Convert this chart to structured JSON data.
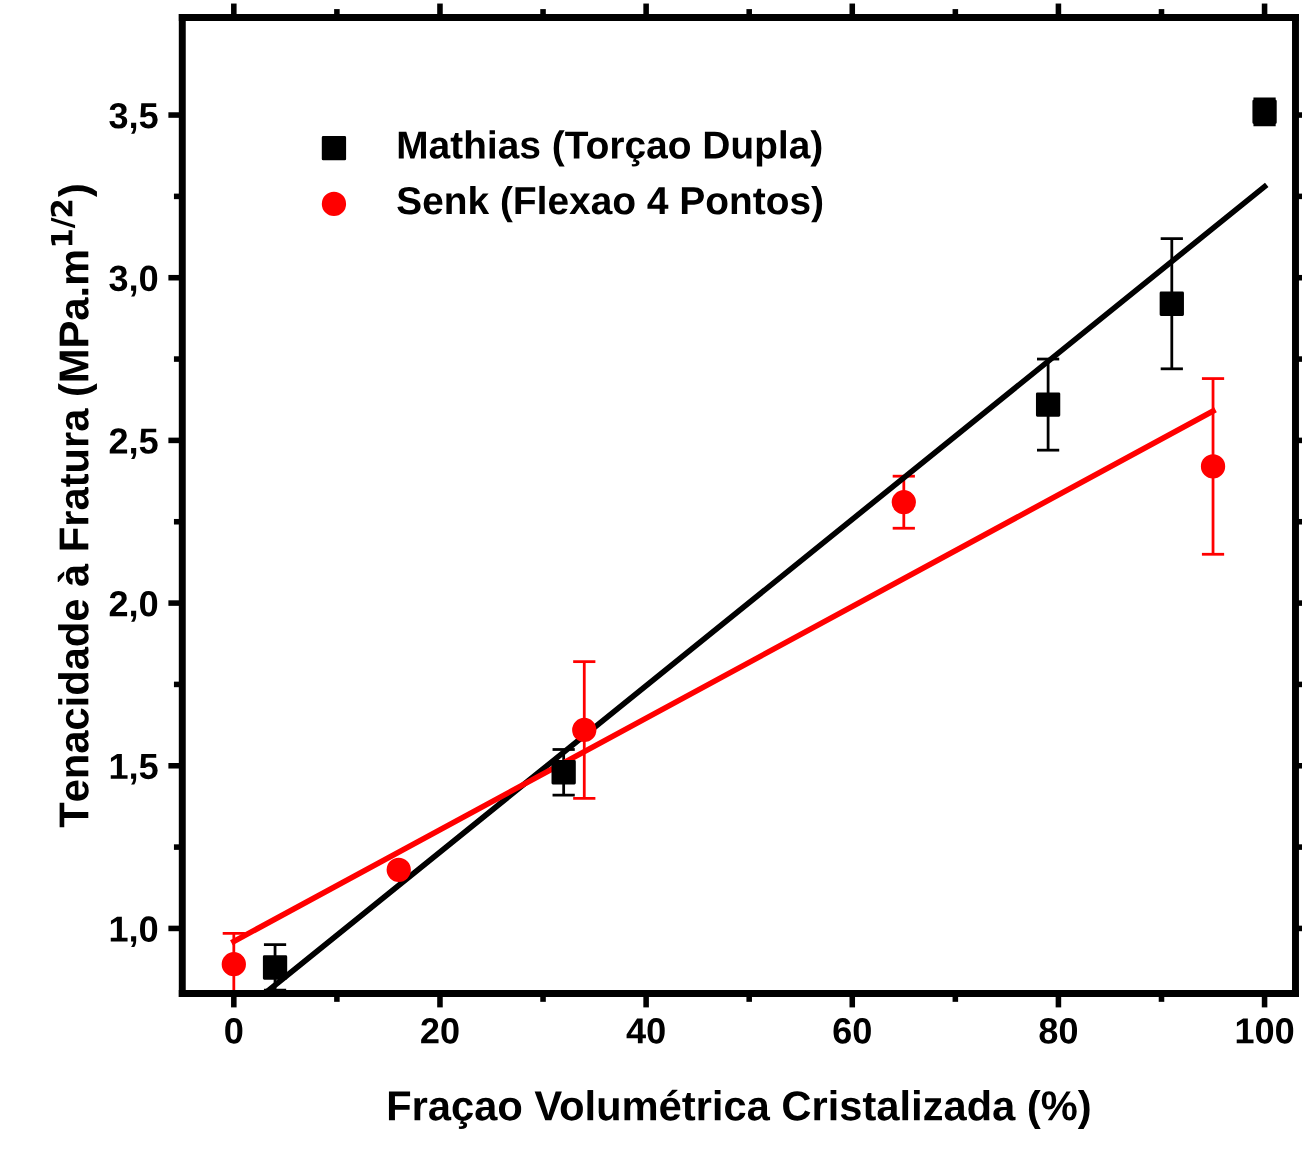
{
  "chart_data": {
    "type": "scatter",
    "xlabel": "Fraçao Volumétrica Cristalizada (%)",
    "ylabel": "Tenacidade à Fratura (MPa.m$^{1/2}$)",
    "xlim": [
      -5,
      103
    ],
    "ylim": [
      0.8,
      3.8
    ],
    "xticks": [
      0,
      20,
      40,
      60,
      80,
      100
    ],
    "yticks": [
      {
        "value": 1.0,
        "label": "1,0"
      },
      {
        "value": 1.5,
        "label": "1,5"
      },
      {
        "value": 2.0,
        "label": "2,0"
      },
      {
        "value": 2.5,
        "label": "2,5"
      },
      {
        "value": 3.0,
        "label": "3,0"
      },
      {
        "value": 3.5,
        "label": "3,5"
      }
    ],
    "grid": false,
    "legend": "top left",
    "series": [
      {
        "name": "Mathias (Torçao Dupla)",
        "color": "#000000",
        "marker": "square",
        "x": [
          4,
          32,
          79,
          91,
          100
        ],
        "values": [
          0.88,
          1.48,
          2.61,
          2.92,
          3.51
        ],
        "errors": [
          0.07,
          0.07,
          0.14,
          0.2,
          0.04
        ]
      },
      {
        "name": "Senk (Flexao 4 Pontos)",
        "color": "#ff0000",
        "marker": "circle",
        "x": [
          0,
          16,
          34,
          65,
          95
        ],
        "values": [
          0.89,
          1.18,
          1.61,
          2.31,
          2.42
        ],
        "errors": [
          0.095,
          null,
          0.21,
          0.08,
          0.27
        ]
      },
      {
        "type": "line",
        "color": "#000000",
        "x": [
          3,
          100
        ],
        "values": [
          0.8,
          3.28
        ]
      },
      {
        "type": "line",
        "color": "#ff0000",
        "x": [
          0,
          95
        ],
        "values": [
          0.96,
          2.59
        ]
      }
    ]
  }
}
